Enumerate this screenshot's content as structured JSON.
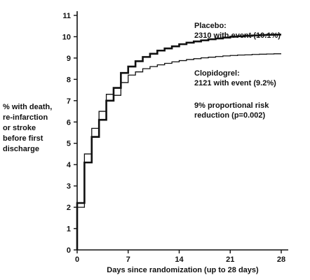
{
  "chart_data": {
    "type": "line",
    "step": true,
    "xlabel": "Days since randomization (up to 28 days)",
    "ylabel_lines": [
      "% with death,",
      "re-infarction",
      "or stroke",
      "before first",
      "discharge"
    ],
    "xlim": [
      0,
      28
    ],
    "ylim": [
      0,
      11
    ],
    "xticks": [
      0,
      7,
      14,
      21,
      28
    ],
    "yticks": [
      0,
      1,
      2,
      3,
      4,
      5,
      6,
      7,
      8,
      9,
      10,
      11
    ],
    "grid": false,
    "series": [
      {
        "name": "Placebo",
        "color": "#111111",
        "stroke_weight": "heavy",
        "x": [
          0,
          1,
          2,
          3,
          4,
          5,
          6,
          7,
          8,
          9,
          10,
          11,
          12,
          13,
          14,
          15,
          16,
          17,
          18,
          19,
          20,
          21,
          22,
          23,
          24,
          25,
          26,
          27,
          28
        ],
        "y": [
          2.2,
          4.1,
          5.3,
          6.1,
          7.0,
          7.6,
          8.3,
          8.6,
          8.85,
          9.05,
          9.2,
          9.35,
          9.45,
          9.55,
          9.65,
          9.72,
          9.78,
          9.83,
          9.88,
          9.92,
          9.96,
          10.0,
          10.02,
          10.04,
          10.06,
          10.08,
          10.09,
          10.1,
          10.1
        ]
      },
      {
        "name": "Clopidogrel",
        "color": "#111111",
        "stroke_weight": "light",
        "x": [
          0,
          1,
          2,
          3,
          4,
          5,
          6,
          7,
          8,
          9,
          10,
          11,
          12,
          13,
          14,
          15,
          16,
          17,
          18,
          19,
          20,
          21,
          22,
          23,
          24,
          25,
          26,
          27,
          28
        ],
        "y": [
          2.0,
          4.5,
          5.7,
          6.5,
          7.3,
          7.25,
          7.85,
          8.2,
          8.35,
          8.5,
          8.6,
          8.68,
          8.75,
          8.82,
          8.88,
          8.93,
          8.97,
          9.01,
          9.04,
          9.07,
          9.1,
          9.12,
          9.14,
          9.15,
          9.17,
          9.18,
          9.19,
          9.2,
          9.2
        ]
      }
    ],
    "annotations": [
      {
        "series": "Placebo",
        "lines": [
          "Placebo:",
          "2310 with event (10.1%)"
        ]
      },
      {
        "series": "Clopidogrel",
        "lines": [
          "Clopidogrel:",
          "2121 with event (9.2%)"
        ]
      },
      {
        "series": "",
        "lines": [
          "9% proportional risk",
          "reduction (p=0.002)"
        ]
      }
    ]
  }
}
